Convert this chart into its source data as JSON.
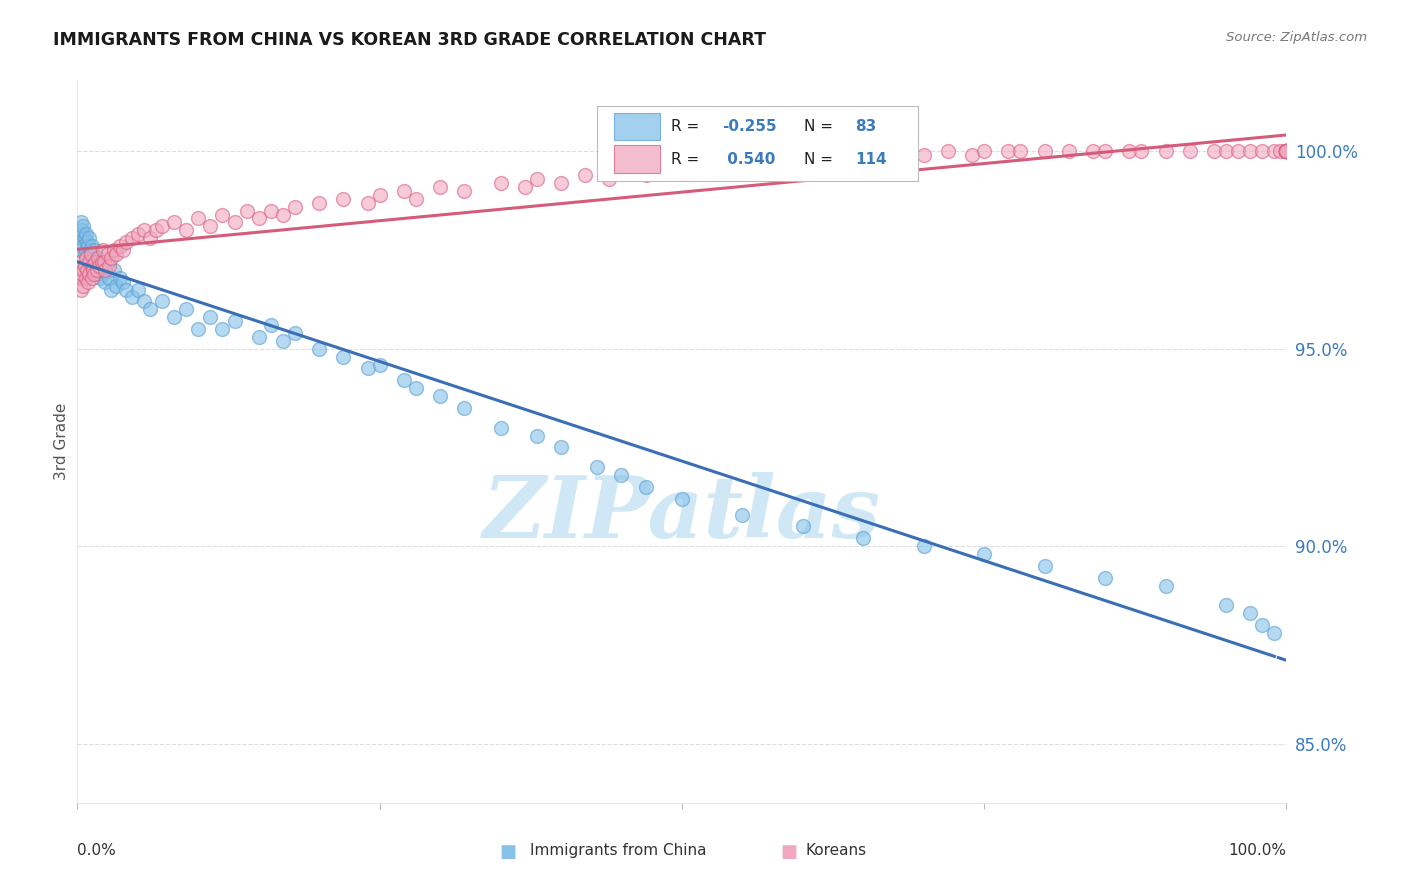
{
  "title": "IMMIGRANTS FROM CHINA VS KOREAN 3RD GRADE CORRELATION CHART",
  "source": "Source: ZipAtlas.com",
  "ylabel": "3rd Grade",
  "right_yticks": [
    85.0,
    90.0,
    95.0,
    100.0
  ],
  "right_ytick_labels": [
    "85.0%",
    "90.0%",
    "95.0%",
    "100.0%"
  ],
  "china_color": "#85c1e9",
  "china_color_edge": "#5b9fd4",
  "korea_color": "#f1a7c0",
  "korea_color_edge": "#d9607f",
  "trend_china_color": "#3a6eb5",
  "trend_korea_color": "#d45c7a",
  "watermark": "ZIPatlas",
  "watermark_color": "#d0e8f5",
  "background_color": "#ffffff",
  "grid_color": "#dddddd",
  "xlim": [
    0,
    100
  ],
  "ylim": [
    83.5,
    101.8
  ],
  "china_points_x": [
    0.2,
    0.3,
    0.3,
    0.4,
    0.4,
    0.5,
    0.5,
    0.6,
    0.6,
    0.7,
    0.7,
    0.8,
    0.8,
    0.9,
    1.0,
    1.0,
    1.1,
    1.1,
    1.2,
    1.2,
    1.3,
    1.3,
    1.4,
    1.5,
    1.5,
    1.6,
    1.7,
    1.8,
    1.9,
    2.0,
    2.1,
    2.2,
    2.3,
    2.5,
    2.6,
    2.8,
    3.0,
    3.2,
    3.5,
    3.8,
    4.0,
    4.5,
    5.0,
    5.5,
    6.0,
    7.0,
    8.0,
    9.0,
    10.0,
    11.0,
    12.0,
    13.0,
    15.0,
    16.0,
    17.0,
    18.0,
    20.0,
    22.0,
    24.0,
    25.0,
    27.0,
    28.0,
    30.0,
    32.0,
    35.0,
    38.0,
    40.0,
    43.0,
    45.0,
    47.0,
    50.0,
    55.0,
    60.0,
    65.0,
    70.0,
    75.0,
    80.0,
    85.0,
    90.0,
    95.0,
    97.0,
    98.0,
    99.0
  ],
  "china_points_y": [
    97.8,
    98.2,
    97.5,
    97.9,
    98.0,
    97.6,
    98.1,
    97.4,
    97.8,
    97.5,
    97.9,
    97.3,
    97.7,
    97.6,
    97.2,
    97.8,
    97.5,
    97.1,
    97.6,
    97.3,
    97.4,
    97.0,
    97.2,
    97.5,
    96.9,
    97.3,
    97.0,
    97.2,
    96.8,
    97.1,
    96.9,
    97.0,
    96.7,
    97.2,
    96.8,
    96.5,
    97.0,
    96.6,
    96.8,
    96.7,
    96.5,
    96.3,
    96.5,
    96.2,
    96.0,
    96.2,
    95.8,
    96.0,
    95.5,
    95.8,
    95.5,
    95.7,
    95.3,
    95.6,
    95.2,
    95.4,
    95.0,
    94.8,
    94.5,
    94.6,
    94.2,
    94.0,
    93.8,
    93.5,
    93.0,
    92.8,
    92.5,
    92.0,
    91.8,
    91.5,
    91.2,
    90.8,
    90.5,
    90.2,
    90.0,
    89.8,
    89.5,
    89.2,
    89.0,
    88.5,
    88.3,
    88.0,
    87.8
  ],
  "korea_points_x": [
    0.2,
    0.3,
    0.3,
    0.4,
    0.5,
    0.5,
    0.6,
    0.7,
    0.7,
    0.8,
    0.9,
    1.0,
    1.0,
    1.1,
    1.2,
    1.2,
    1.3,
    1.4,
    1.5,
    1.6,
    1.7,
    1.8,
    2.0,
    2.1,
    2.2,
    2.3,
    2.5,
    2.6,
    2.8,
    3.0,
    3.2,
    3.5,
    3.8,
    4.0,
    4.5,
    5.0,
    5.5,
    6.0,
    6.5,
    7.0,
    8.0,
    9.0,
    10.0,
    11.0,
    12.0,
    13.0,
    14.0,
    15.0,
    16.0,
    17.0,
    18.0,
    20.0,
    22.0,
    24.0,
    25.0,
    27.0,
    28.0,
    30.0,
    32.0,
    35.0,
    37.0,
    38.0,
    40.0,
    42.0,
    44.0,
    45.0,
    47.0,
    48.0,
    50.0,
    52.0,
    54.0,
    56.0,
    58.0,
    60.0,
    62.0,
    64.0,
    66.0,
    68.0,
    70.0,
    72.0,
    74.0,
    75.0,
    77.0,
    78.0,
    80.0,
    82.0,
    84.0,
    85.0,
    87.0,
    88.0,
    90.0,
    92.0,
    94.0,
    95.0,
    96.0,
    97.0,
    98.0,
    99.0,
    99.5,
    100.0,
    100.0,
    100.0,
    100.0,
    100.0,
    100.0,
    100.0,
    100.0,
    100.0,
    100.0,
    100.0,
    100.0,
    100.0,
    100.0,
    100.0
  ],
  "korea_points_y": [
    96.8,
    97.2,
    96.5,
    96.9,
    97.0,
    96.6,
    97.1,
    96.8,
    97.3,
    97.0,
    96.7,
    97.2,
    96.9,
    97.4,
    97.1,
    96.8,
    97.0,
    96.9,
    97.2,
    97.0,
    97.3,
    97.1,
    97.2,
    97.5,
    97.2,
    97.0,
    97.4,
    97.1,
    97.3,
    97.5,
    97.4,
    97.6,
    97.5,
    97.7,
    97.8,
    97.9,
    98.0,
    97.8,
    98.0,
    98.1,
    98.2,
    98.0,
    98.3,
    98.1,
    98.4,
    98.2,
    98.5,
    98.3,
    98.5,
    98.4,
    98.6,
    98.7,
    98.8,
    98.7,
    98.9,
    99.0,
    98.8,
    99.1,
    99.0,
    99.2,
    99.1,
    99.3,
    99.2,
    99.4,
    99.3,
    99.5,
    99.4,
    99.6,
    99.5,
    99.7,
    99.6,
    99.8,
    99.7,
    99.8,
    99.9,
    99.8,
    99.9,
    100.0,
    99.9,
    100.0,
    99.9,
    100.0,
    100.0,
    100.0,
    100.0,
    100.0,
    100.0,
    100.0,
    100.0,
    100.0,
    100.0,
    100.0,
    100.0,
    100.0,
    100.0,
    100.0,
    100.0,
    100.0,
    100.0,
    100.0,
    100.0,
    100.0,
    100.0,
    100.0,
    100.0,
    100.0,
    100.0,
    100.0,
    100.0,
    100.0,
    100.0,
    100.0,
    100.0,
    100.0
  ]
}
